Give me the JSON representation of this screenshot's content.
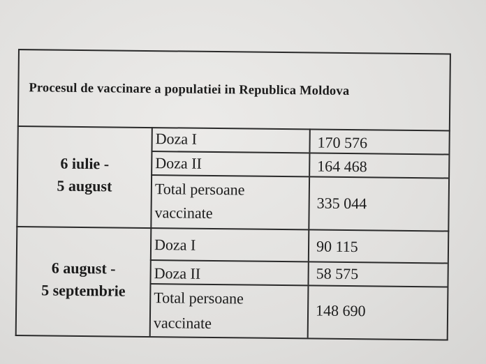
{
  "document": {
    "title": "Procesul de vaccinare a populatiei in Republica Moldova",
    "periods": [
      {
        "label_line1": "6 iulie -",
        "label_line2": "5 august",
        "rows": [
          {
            "label": "Doza I",
            "value": "170 576"
          },
          {
            "label": "Doza II",
            "value": "164 468"
          },
          {
            "label_line1": "Total persoane",
            "label_line2": "vaccinate",
            "value": "335 044"
          }
        ]
      },
      {
        "label_line1": "6 august -",
        "label_line2": "5 septembrie",
        "rows": [
          {
            "label": "Doza I",
            "value": "90 115"
          },
          {
            "label": "Doza II",
            "value": "58 575"
          },
          {
            "label_line1": "Total persoane",
            "label_line2": "vaccinate",
            "value": "148 690"
          }
        ]
      }
    ]
  }
}
